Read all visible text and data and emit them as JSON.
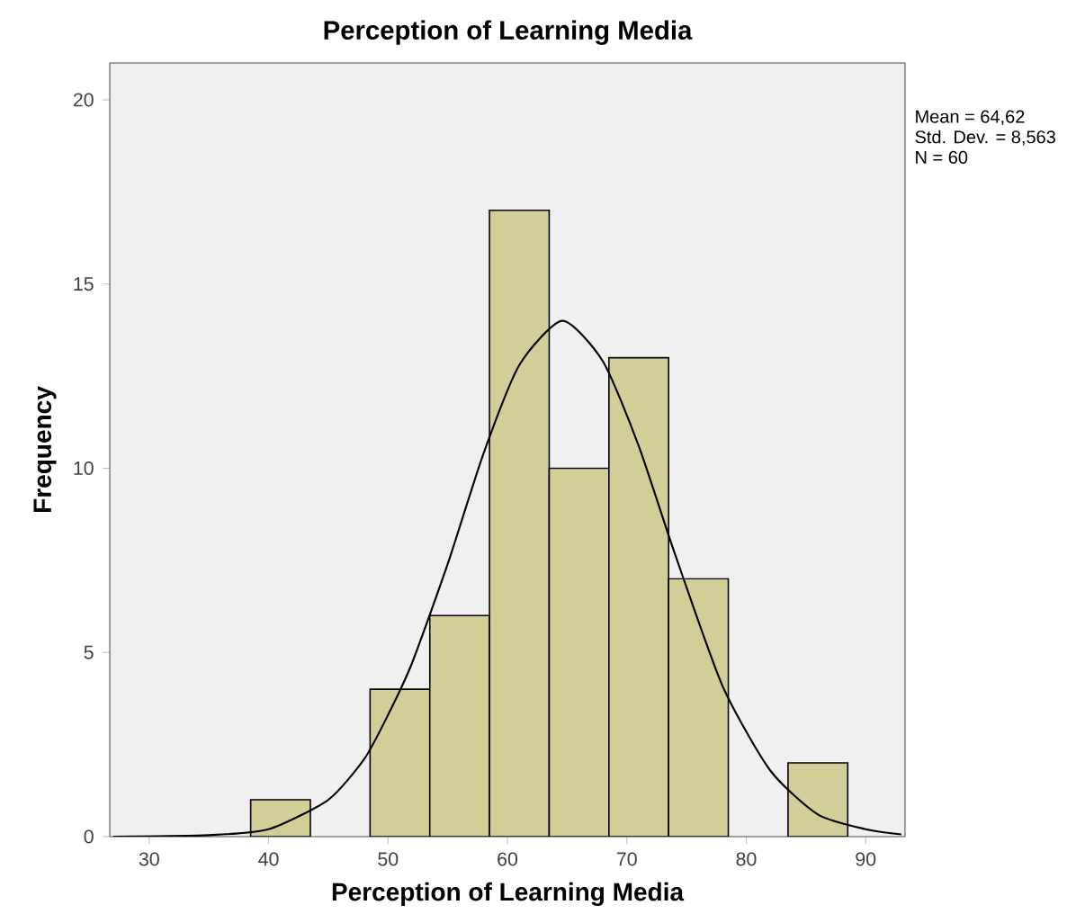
{
  "chart_data": {
    "type": "histogram",
    "title": "Perception of Learning Media",
    "xlabel": "Perception of Learning Media",
    "ylabel": "Frequency",
    "bins": [
      38.5,
      43.5,
      48.5,
      53.5,
      58.5,
      63.5,
      68.5,
      73.5,
      78.5,
      83.5,
      88.5
    ],
    "values": [
      1,
      0,
      4,
      6,
      17,
      10,
      13,
      7,
      0,
      2
    ],
    "color": "#d3ce97",
    "series": [
      {
        "type": "line",
        "color": "#000000",
        "x": [
          27,
          35,
          40,
          45,
          48,
          50,
          52,
          55,
          58,
          61,
          64.6,
          68,
          71,
          74,
          78,
          82,
          86,
          90,
          93
        ],
        "values": [
          0.0,
          0.04,
          0.2,
          1.0,
          2.1,
          3.3,
          4.7,
          7.4,
          10.4,
          12.8,
          14.0,
          12.9,
          10.6,
          7.7,
          4.1,
          1.8,
          0.6,
          0.2,
          0.06
        ]
      }
    ],
    "xlim": [
      26.7,
      93.3
    ],
    "ylim": [
      0,
      21
    ],
    "xticks": [
      30,
      40,
      50,
      60,
      70,
      80,
      90
    ],
    "yticks": [
      0,
      5,
      10,
      15,
      20
    ],
    "grid": false,
    "annotations": [
      "Mean = 64,62",
      "Std. Dev. = 8,563",
      "N = 60"
    ]
  }
}
